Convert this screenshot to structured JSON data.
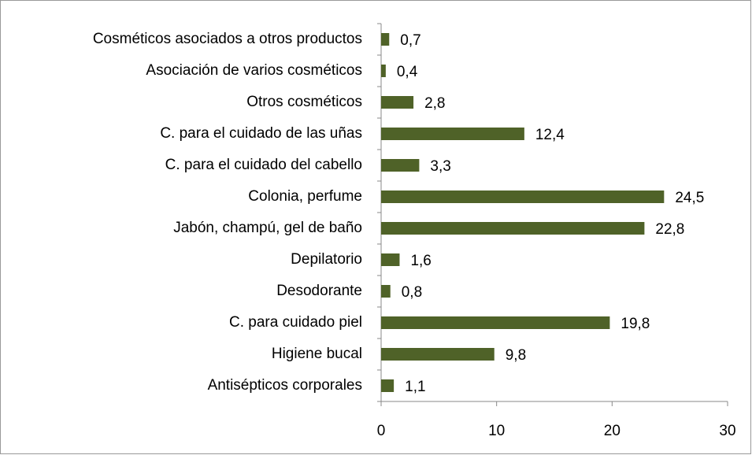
{
  "chart_data": {
    "type": "hbar",
    "categories": [
      "Cosméticos asociados a otros productos",
      "Asociación de varios cosméticos",
      "Otros cosméticos",
      "C. para el cuidado de las uñas",
      "C. para el cuidado del cabello",
      "Colonia, perfume",
      "Jabón, champú, gel de baño",
      "Depilatorio",
      "Desodorante",
      "C. para cuidado piel",
      "Higiene bucal",
      "Antisépticos corporales"
    ],
    "values": [
      0.7,
      0.4,
      2.8,
      12.4,
      3.3,
      24.5,
      22.8,
      1.6,
      0.8,
      19.8,
      9.8,
      1.1
    ],
    "value_labels": [
      "0,7",
      "0,4",
      "2,8",
      "12,4",
      "3,3",
      "24,5",
      "22,8",
      "1,6",
      "0,8",
      "19,8",
      "9,8",
      "1,1"
    ],
    "color": "#4f6228",
    "xlim": [
      0,
      30
    ],
    "xticks": [
      0,
      10,
      20,
      30
    ],
    "grid": false
  }
}
